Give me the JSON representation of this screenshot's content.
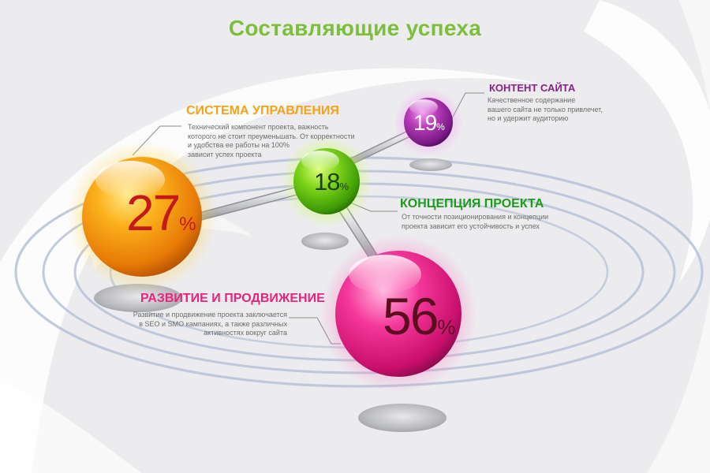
{
  "title": "Составляющие успеха",
  "colors": {
    "title": "#7cbf3a",
    "orange": "#f6a21a",
    "green": "#1e9a1e",
    "purple": "#8a1f86",
    "pink": "#e8237e",
    "number_red": "#c41a1a",
    "number_dark": "#5a0e1e",
    "number_on_green": "#1f3f0a",
    "number_on_purple": "#ffffff"
  },
  "chart_data": {
    "type": "diagram",
    "percent_sign": "%",
    "items": [
      {
        "id": "system",
        "value": 27,
        "label": "СИСТЕМА УПРАВЛЕНИЯ",
        "description": [
          "Технический компонент проекта, важность",
          "которого не стоит преуменьшать. От корректности",
          "и удобства ее работы на 100%",
          "зависит успех проекта"
        ]
      },
      {
        "id": "concept",
        "value": 18,
        "label": "КОНЦЕПЦИЯ ПРОЕКТА",
        "description": [
          "От точности позиционирования и концепции",
          "проекта зависит его устойчивость и успех"
        ]
      },
      {
        "id": "content",
        "value": 19,
        "label": "КОНТЕНТ САЙТА",
        "description": [
          "Качественное содержание",
          "вашего сайта не только привлечет,",
          "но и удержит аудиторию"
        ]
      },
      {
        "id": "promotion",
        "value": 56,
        "label": "РАЗВИТИЕ И ПРОДВИЖЕНИЕ",
        "description": [
          "Развитие и продвижение проекта заключается",
          "в SEO и SMO кампаниях, а также различных",
          "активностях вокруг сайта"
        ]
      }
    ]
  }
}
